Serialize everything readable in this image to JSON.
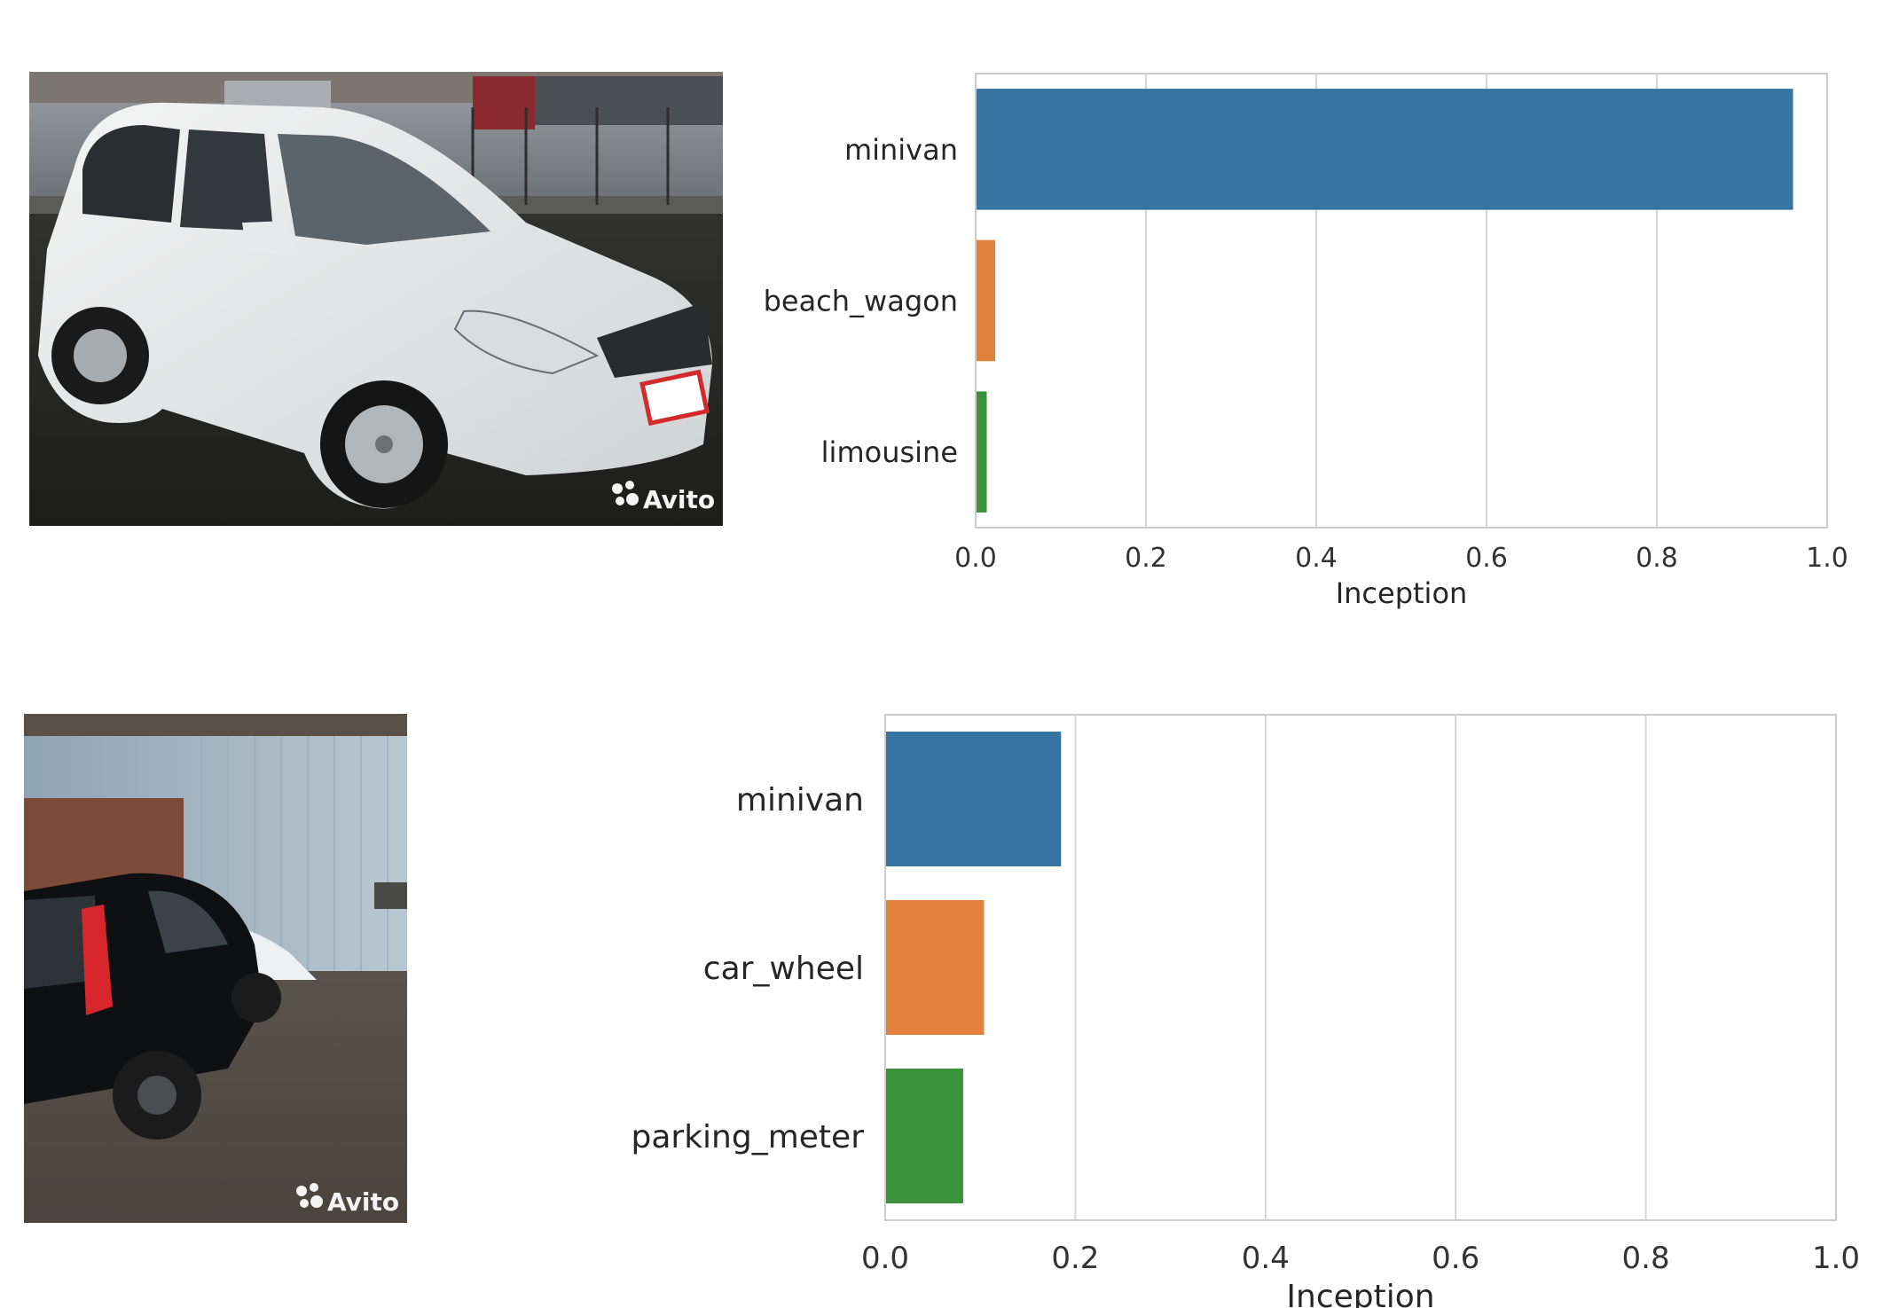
{
  "watermark": "Avito",
  "colors": {
    "series": [
      "#3674a4",
      "#e1813b",
      "#3a923a"
    ],
    "grid": "#d6d6d6",
    "frame": "#cccccc"
  },
  "chart_data": [
    {
      "type": "bar",
      "orientation": "horizontal",
      "categories": [
        "minivan",
        "beach_wagon",
        "limousine"
      ],
      "values": [
        0.96,
        0.023,
        0.013
      ],
      "xlabel": "Inception",
      "xlim": [
        0,
        1.0
      ],
      "xticks": [
        "0.0",
        "0.2",
        "0.4",
        "0.6",
        "0.8",
        "1.0"
      ],
      "grid": "vertical"
    },
    {
      "type": "bar",
      "orientation": "horizontal",
      "categories": [
        "minivan",
        "car_wheel",
        "parking_meter"
      ],
      "values": [
        0.185,
        0.104,
        0.082
      ],
      "xlabel": "Inception",
      "xlim": [
        0,
        1.0
      ],
      "xticks": [
        "0.0",
        "0.2",
        "0.4",
        "0.6",
        "0.8",
        "1.0"
      ],
      "grid": "vertical"
    }
  ]
}
